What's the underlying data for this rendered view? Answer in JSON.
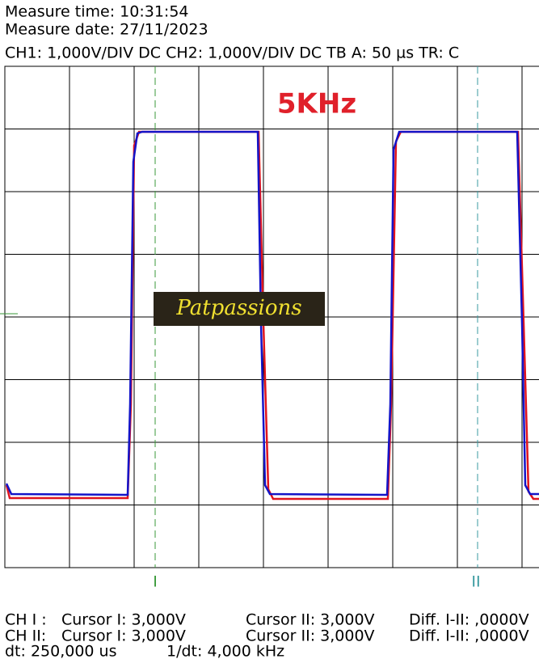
{
  "header": {
    "measure_time": "Measure time: 10:31:54",
    "measure_date": "Measure date: 27/11/2023",
    "settings": "CH1: 1,000V/DIV DC  CH2: 1,000V/DIV DC   TB A: 50 µs  TR: C"
  },
  "screen": {
    "frequency_label": "5KHz",
    "watermark": "Patpassions",
    "cursor_1_label": "I",
    "cursor_2_label": "II"
  },
  "readout": {
    "rows": [
      [
        "CH I :",
        "Cursor I: 3,000V",
        "Cursor II: 3,000V",
        "Diff. I-II: ,0000V"
      ],
      [
        "CH II:",
        "Cursor I: 3,000V",
        "Cursor II: 3,000V",
        "Diff. I-II: ,0000V"
      ]
    ],
    "dt": "dt: 250,000 us",
    "inv_dt": "1/dt: 4,000 kHz"
  }
}
